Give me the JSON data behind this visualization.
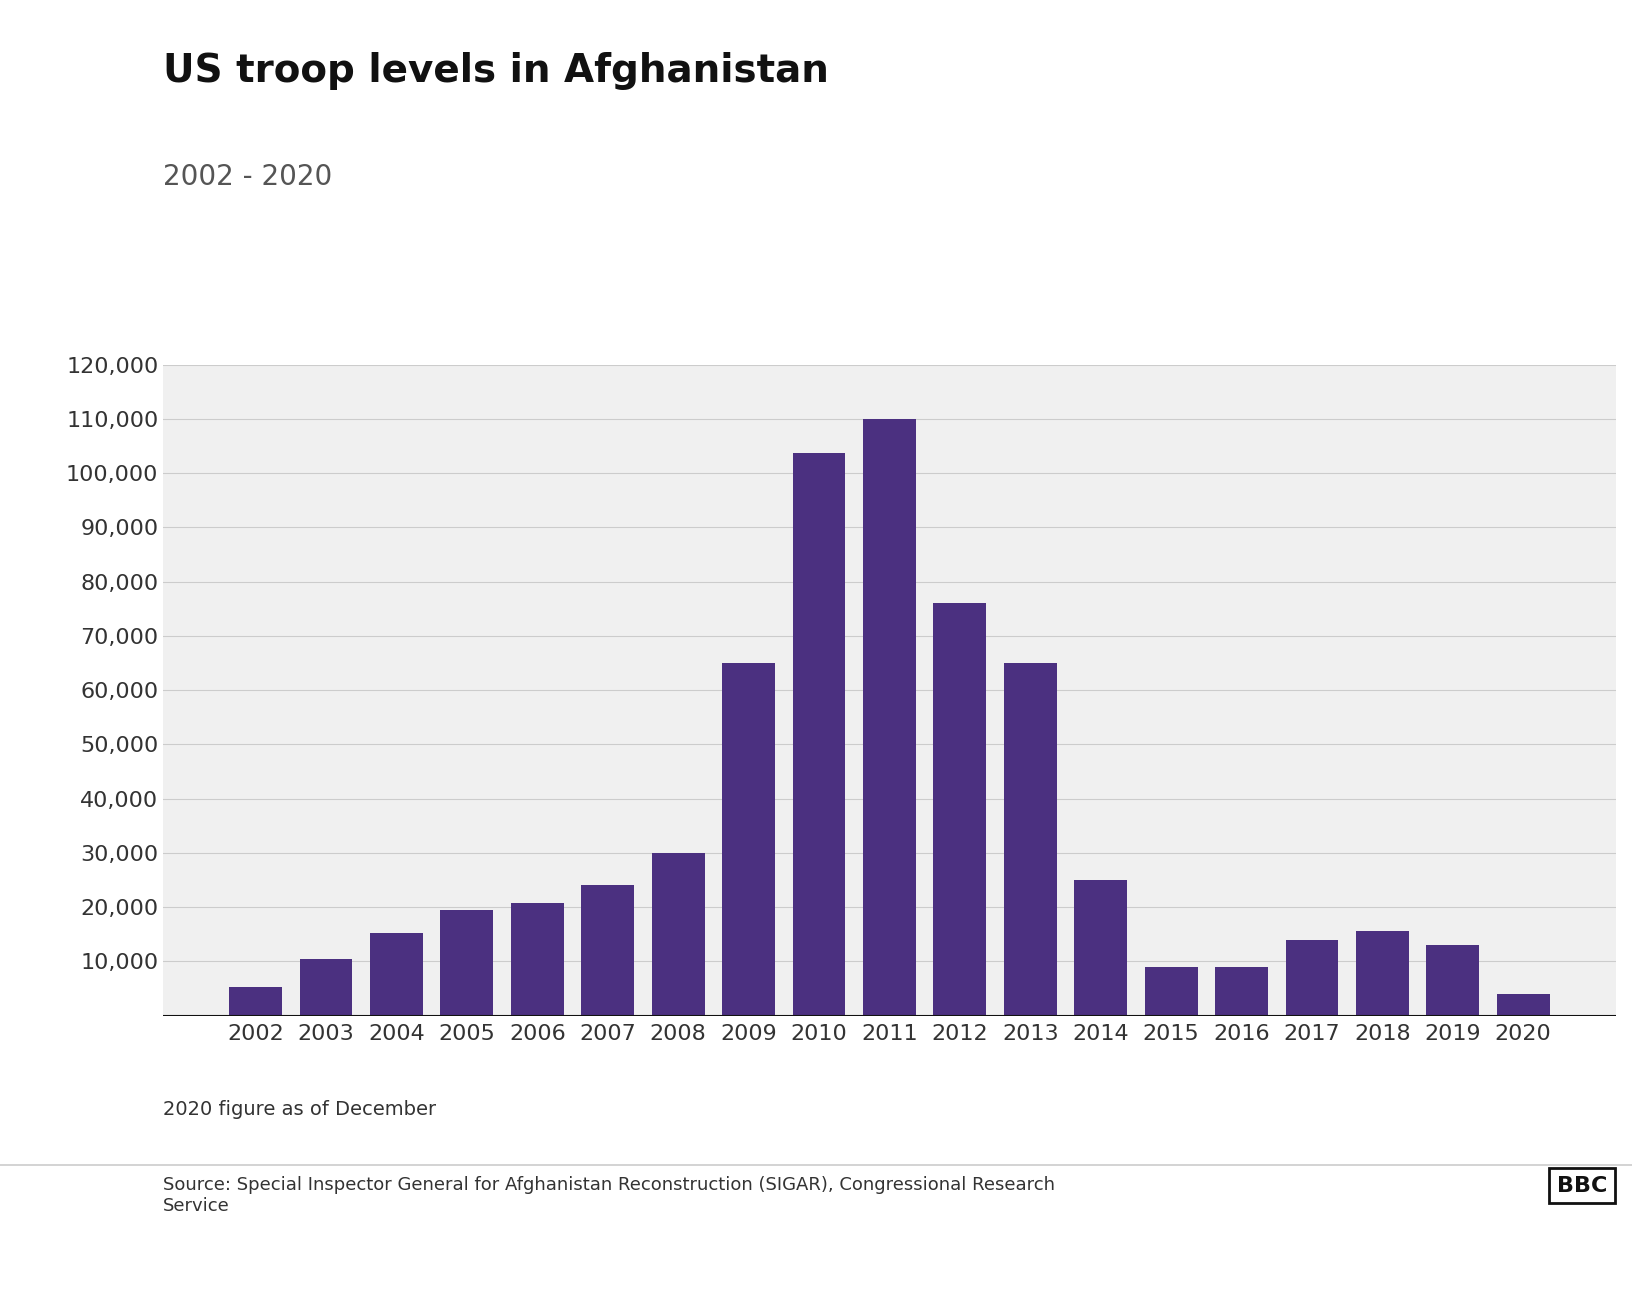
{
  "title": "US troop levels in Afghanistan",
  "subtitle": "2002 - 2020",
  "years": [
    2002,
    2003,
    2004,
    2005,
    2006,
    2007,
    2008,
    2009,
    2010,
    2011,
    2012,
    2013,
    2014,
    2015,
    2016,
    2017,
    2018,
    2019,
    2020
  ],
  "values": [
    5200,
    10400,
    15200,
    19500,
    20800,
    24000,
    30000,
    65000,
    103700,
    110000,
    76000,
    65000,
    25000,
    9000,
    9000,
    14000,
    15500,
    13000,
    4000
  ],
  "bar_color": "#4b3080",
  "background_color": "#ffffff",
  "plot_background": "#f0f0f0",
  "grid_color": "#cccccc",
  "ylim": [
    0,
    120000
  ],
  "yticks": [
    0,
    10000,
    20000,
    30000,
    40000,
    50000,
    60000,
    70000,
    80000,
    90000,
    100000,
    110000,
    120000
  ],
  "title_fontsize": 28,
  "subtitle_fontsize": 20,
  "tick_fontsize": 16,
  "footnote": "2020 figure as of December",
  "source": "Source: Special Inspector General for Afghanistan Reconstruction (SIGAR), Congressional Research\nService",
  "bbc_logo": "BBC"
}
